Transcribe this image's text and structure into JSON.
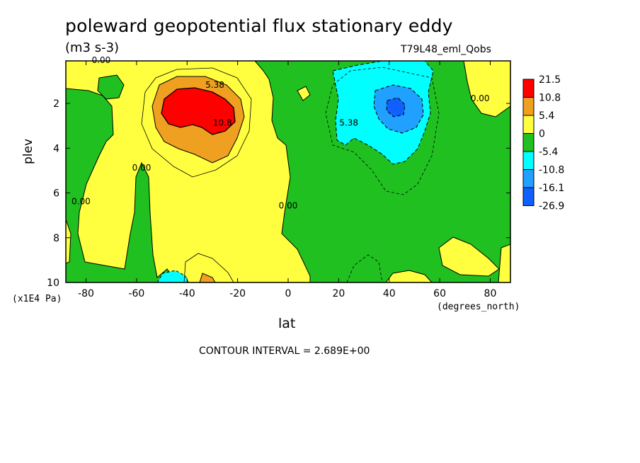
{
  "header": {
    "title": "poleward geopotential flux stationary eddy",
    "units": "(m3 s-3)",
    "run_name": "T79L48_eml_Qobs"
  },
  "footer": {
    "contour_interval": "CONTOUR INTERVAL = 2.689E+00"
  },
  "chart_data": {
    "type": "contour",
    "title": "poleward geopotential flux stationary eddy",
    "xlabel": "lat",
    "x_units": "(degrees_north)",
    "ylabel": "plev",
    "y_units": "(x1E4 Pa)",
    "xlim": [
      -88,
      88
    ],
    "ylim": [
      0.1,
      10
    ],
    "y_inverted": true,
    "x_ticks": [
      -80,
      -60,
      -40,
      -20,
      0,
      20,
      40,
      60,
      80
    ],
    "y_ticks": [
      2,
      4,
      6,
      8,
      10
    ],
    "contour_interval": 2.689,
    "colorbar": {
      "labels": [
        "21.5",
        "10.8",
        "5.4",
        "0",
        "-5.4",
        "-10.8",
        "-16.1",
        "-26.9"
      ],
      "colors": [
        "#ff0000",
        "#f0a020",
        "#ffff40",
        "#20c020",
        "#00ffff",
        "#20a0ff",
        "#1060ff"
      ]
    },
    "contour_labels": [
      {
        "text": "0.00",
        "x": -74,
        "y": 0.2
      },
      {
        "text": "5.38",
        "x": -29,
        "y": 1.3
      },
      {
        "text": "10.8",
        "x": -26,
        "y": 3.0
      },
      {
        "text": "5.38",
        "x": 24,
        "y": 3.0
      },
      {
        "text": "0.00",
        "x": 76,
        "y": 1.9
      },
      {
        "text": "0.00",
        "x": -58,
        "y": 5.0
      },
      {
        "text": "0.00",
        "x": -82,
        "y": 6.5
      },
      {
        "text": "0.00",
        "x": 0,
        "y": 6.7
      }
    ],
    "features": [
      {
        "name": "southern positive maximum",
        "lat": -38,
        "plev": 2.4,
        "value": 21.5
      },
      {
        "name": "northern negative minimum",
        "lat": 43,
        "plev": 2.3,
        "value": -16.1
      }
    ]
  }
}
